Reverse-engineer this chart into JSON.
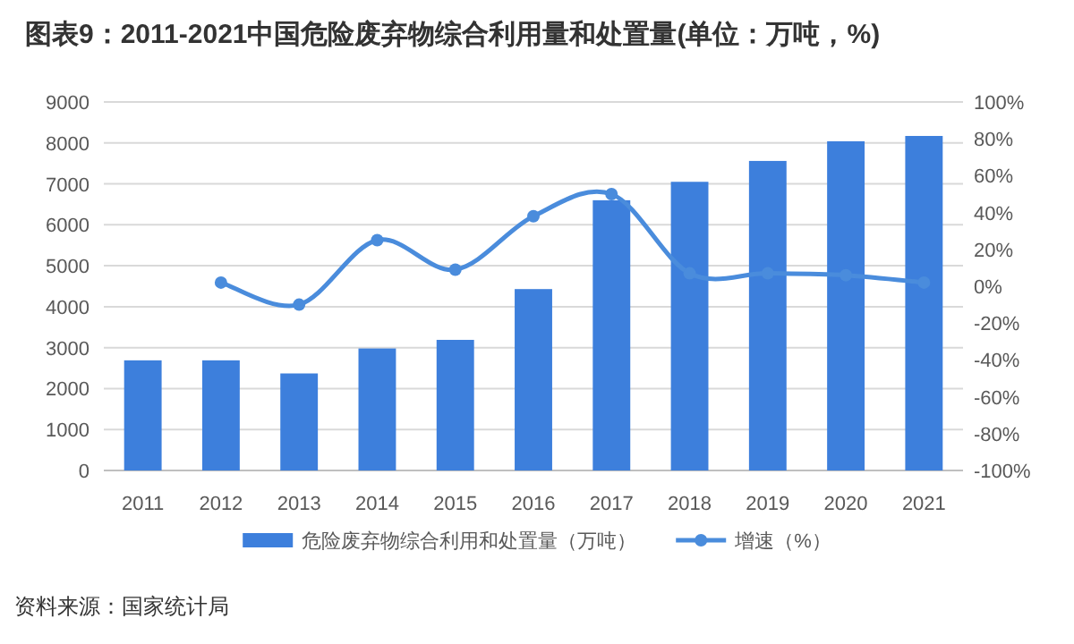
{
  "chart_data": {
    "type": "bar",
    "title": "图表9：2011-2021中国危险废弃物综合利用量和处置量(单位：万吨，%)",
    "categories": [
      "2011",
      "2012",
      "2013",
      "2014",
      "2015",
      "2016",
      "2017",
      "2018",
      "2019",
      "2020",
      "2021"
    ],
    "series": [
      {
        "name": "危险废弃物综合利用和处置量（万吨）",
        "color": "#3d7fdc",
        "values": [
          2690,
          2690,
          2370,
          2980,
          3190,
          4430,
          6600,
          7050,
          7560,
          8040,
          8170
        ]
      },
      {
        "name": "增速（%）",
        "type": "line",
        "axis": "y2",
        "color": "#4a8cdc",
        "values": [
          null,
          2,
          -10,
          25,
          9,
          38,
          50,
          7,
          7,
          6,
          2
        ]
      }
    ],
    "ylim": [
      0,
      9000
    ],
    "yticks": [
      0,
      1000,
      2000,
      3000,
      4000,
      5000,
      6000,
      7000,
      8000,
      9000
    ],
    "y2lim": [
      -100,
      100
    ],
    "y2ticks": [
      {
        "value": -100,
        "label": "-100%"
      },
      {
        "value": -80,
        "label": "-80%"
      },
      {
        "value": -60,
        "label": "-60%"
      },
      {
        "value": -40,
        "label": "-40%"
      },
      {
        "value": -20,
        "label": "-20%"
      },
      {
        "value": 0,
        "label": "0%"
      },
      {
        "value": 20,
        "label": "20%"
      },
      {
        "value": 40,
        "label": "40%"
      },
      {
        "value": 60,
        "label": "60%"
      },
      {
        "value": 80,
        "label": "80%"
      },
      {
        "value": 100,
        "label": "100%"
      }
    ],
    "grid": "y",
    "legend": "bottom",
    "marker": "circle",
    "line_style": "solid",
    "annotations": [
      "资料来源：国家统计局"
    ]
  }
}
